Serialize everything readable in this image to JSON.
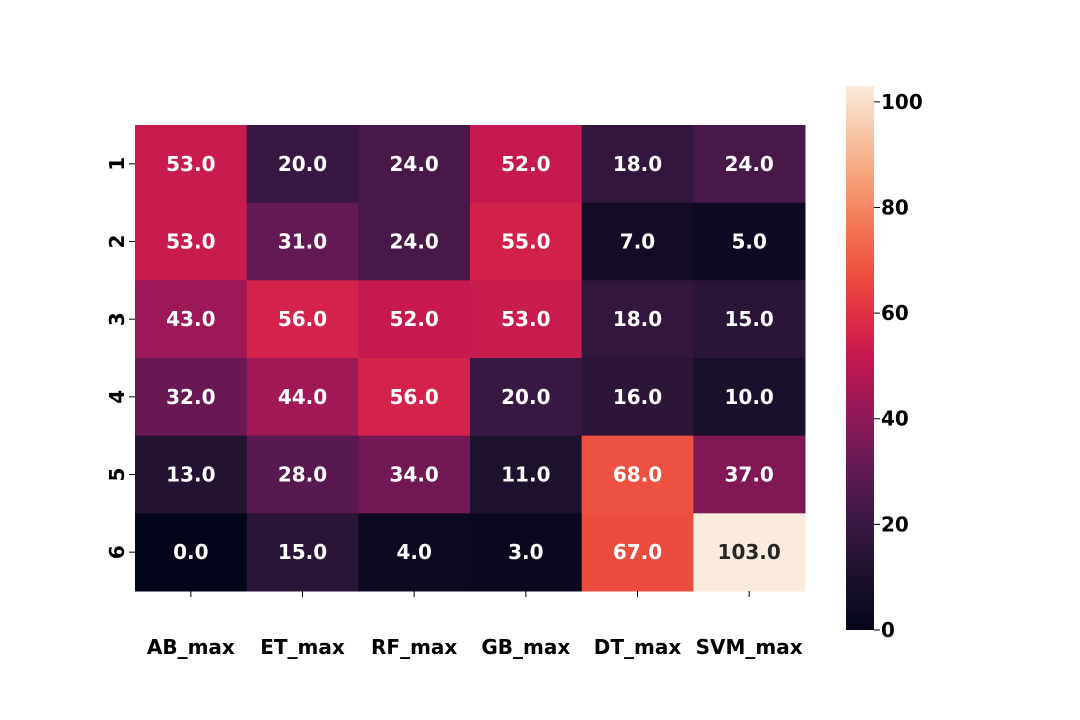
{
  "chart_data": {
    "type": "heatmap",
    "title": "",
    "xlabel": "",
    "ylabel": "",
    "x_categories": [
      "AB_max",
      "ET_max",
      "RF_max",
      "GB_max",
      "DT_max",
      "SVM_max"
    ],
    "y_categories": [
      "1",
      "2",
      "3",
      "4",
      "5",
      "6"
    ],
    "values": [
      [
        53.0,
        20.0,
        24.0,
        52.0,
        18.0,
        24.0
      ],
      [
        53.0,
        31.0,
        24.0,
        55.0,
        7.0,
        5.0
      ],
      [
        43.0,
        56.0,
        52.0,
        53.0,
        18.0,
        15.0
      ],
      [
        32.0,
        44.0,
        56.0,
        20.0,
        16.0,
        10.0
      ],
      [
        13.0,
        28.0,
        34.0,
        11.0,
        68.0,
        37.0
      ],
      [
        0.0,
        15.0,
        4.0,
        3.0,
        67.0,
        103.0
      ]
    ],
    "value_labels": [
      [
        "53.0",
        "20.0",
        "24.0",
        "52.0",
        "18.0",
        "24.0"
      ],
      [
        "53.0",
        "31.0",
        "24.0",
        "55.0",
        "7.0",
        "5.0"
      ],
      [
        "43.0",
        "56.0",
        "52.0",
        "53.0",
        "18.0",
        "15.0"
      ],
      [
        "32.0",
        "44.0",
        "56.0",
        "20.0",
        "16.0",
        "10.0"
      ],
      [
        "13.0",
        "28.0",
        "34.0",
        "11.0",
        "68.0",
        "37.0"
      ],
      [
        "0.0",
        "15.0",
        "4.0",
        "3.0",
        "67.0",
        "103.0"
      ]
    ],
    "colorscale": "rocket",
    "vmin": 0,
    "vmax": 103,
    "colorbar": {
      "ticks": [
        0,
        20,
        40,
        60,
        80,
        100
      ],
      "tick_labels": [
        "0",
        "20",
        "40",
        "60",
        "80",
        "100"
      ],
      "placement": "right"
    }
  }
}
